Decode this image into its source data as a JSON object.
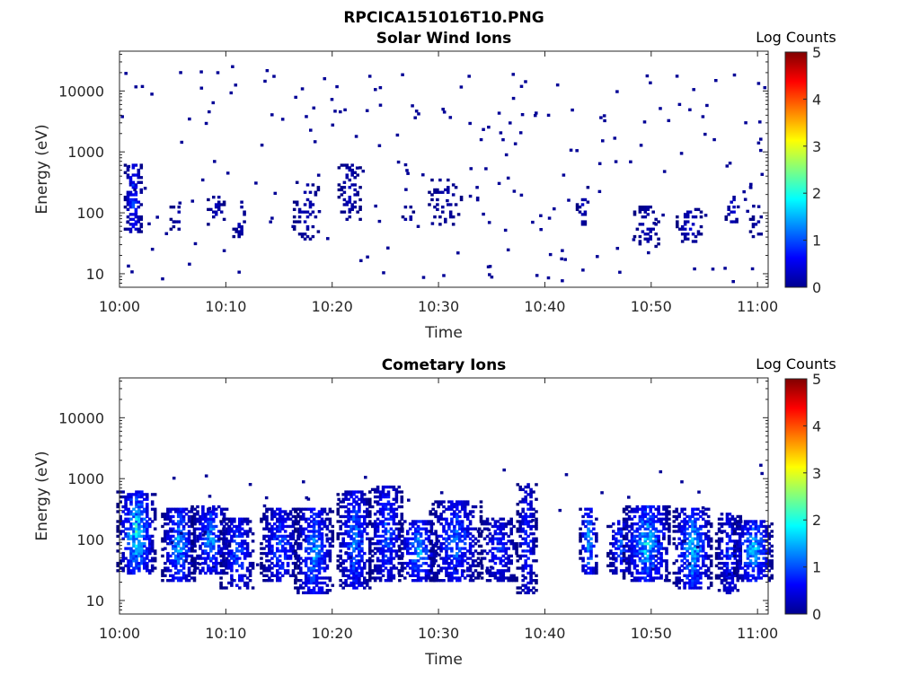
{
  "figure": {
    "filename": "RPCICA151016T10.PNG"
  },
  "chart_data": [
    {
      "type": "heatmap",
      "title": "Solar Wind Ions",
      "xlabel": "Time",
      "ylabel": "Energy (eV)",
      "yscale": "log",
      "ylim": [
        6,
        45000
      ],
      "xlim": [
        "10:00",
        "11:01"
      ],
      "xticks": [
        "10:00",
        "10:10",
        "10:20",
        "10:30",
        "10:40",
        "10:50",
        "11:00"
      ],
      "yticks": [
        "10",
        "100",
        "1000",
        "10000"
      ],
      "colorbar": {
        "label": "Log Counts",
        "min": 0,
        "max": 5,
        "ticks": [
          "0",
          "1",
          "2",
          "3",
          "4",
          "5"
        ]
      },
      "grid": false,
      "bursts": [
        {
          "t": 1.2,
          "elo": 45,
          "ehi": 600,
          "w": 0.8,
          "peak": 1.2,
          "density": 0.6
        },
        {
          "t": 5.3,
          "elo": 50,
          "ehi": 120,
          "w": 0.6,
          "peak": 0.4,
          "density": 0.25
        },
        {
          "t": 9.0,
          "elo": 60,
          "ehi": 180,
          "w": 0.8,
          "peak": 0.4,
          "density": 0.3
        },
        {
          "t": 11.2,
          "elo": 35,
          "ehi": 160,
          "w": 0.6,
          "peak": 0.4,
          "density": 0.35
        },
        {
          "t": 17.5,
          "elo": 35,
          "ehi": 300,
          "w": 1.2,
          "peak": 0.4,
          "density": 0.3
        },
        {
          "t": 21.5,
          "elo": 70,
          "ehi": 600,
          "w": 1.0,
          "peak": 0.4,
          "density": 0.3
        },
        {
          "t": 27.0,
          "elo": 60,
          "ehi": 120,
          "w": 0.5,
          "peak": 0.6,
          "density": 0.3
        },
        {
          "t": 30.5,
          "elo": 60,
          "ehi": 350,
          "w": 1.5,
          "peak": 0.3,
          "density": 0.2
        },
        {
          "t": 43.5,
          "elo": 60,
          "ehi": 250,
          "w": 0.6,
          "peak": 0.4,
          "density": 0.3
        },
        {
          "t": 49.5,
          "elo": 25,
          "ehi": 120,
          "w": 1.2,
          "peak": 0.4,
          "density": 0.35
        },
        {
          "t": 53.5,
          "elo": 30,
          "ehi": 110,
          "w": 1.2,
          "peak": 0.5,
          "density": 0.35
        },
        {
          "t": 57.5,
          "elo": 60,
          "ehi": 180,
          "w": 0.6,
          "peak": 0.6,
          "density": 0.4
        },
        {
          "t": 59.8,
          "elo": 35,
          "ehi": 90,
          "w": 0.6,
          "peak": 0.3,
          "density": 0.3
        }
      ],
      "scatter_count": 220
    },
    {
      "type": "heatmap",
      "title": "Cometary Ions",
      "xlabel": "Time",
      "ylabel": "Energy (eV)",
      "yscale": "log",
      "ylim": [
        6,
        45000
      ],
      "xlim": [
        "10:00",
        "11:01"
      ],
      "xticks": [
        "10:00",
        "10:10",
        "10:20",
        "10:30",
        "10:40",
        "10:50",
        "11:00"
      ],
      "yticks": [
        "10",
        "100",
        "1000",
        "10000"
      ],
      "colorbar": {
        "label": "Log Counts",
        "min": 0,
        "max": 5,
        "ticks": [
          "0",
          "1",
          "2",
          "3",
          "4",
          "5"
        ]
      },
      "grid": false,
      "bursts": [
        {
          "t": 1.5,
          "elo": 25,
          "ehi": 600,
          "w": 1.8,
          "peak": 2.3,
          "density": 0.8
        },
        {
          "t": 5.5,
          "elo": 20,
          "ehi": 300,
          "w": 1.6,
          "peak": 1.9,
          "density": 0.75
        },
        {
          "t": 8.5,
          "elo": 25,
          "ehi": 350,
          "w": 1.8,
          "peak": 1.7,
          "density": 0.7
        },
        {
          "t": 11.0,
          "elo": 15,
          "ehi": 220,
          "w": 1.6,
          "peak": 1.4,
          "density": 0.65
        },
        {
          "t": 15.0,
          "elo": 20,
          "ehi": 300,
          "w": 1.8,
          "peak": 1.4,
          "density": 0.7
        },
        {
          "t": 18.2,
          "elo": 12,
          "ehi": 300,
          "w": 1.8,
          "peak": 1.8,
          "density": 0.75
        },
        {
          "t": 22.0,
          "elo": 15,
          "ehi": 600,
          "w": 1.6,
          "peak": 1.6,
          "density": 0.7
        },
        {
          "t": 25.0,
          "elo": 20,
          "ehi": 700,
          "w": 1.6,
          "peak": 1.4,
          "density": 0.7
        },
        {
          "t": 28.0,
          "elo": 20,
          "ehi": 200,
          "w": 1.8,
          "peak": 1.9,
          "density": 0.7
        },
        {
          "t": 31.5,
          "elo": 20,
          "ehi": 400,
          "w": 2.4,
          "peak": 1.5,
          "density": 0.7
        },
        {
          "t": 35.5,
          "elo": 20,
          "ehi": 220,
          "w": 1.8,
          "peak": 1.1,
          "density": 0.6
        },
        {
          "t": 38.2,
          "elo": 12,
          "ehi": 800,
          "w": 0.9,
          "peak": 1.1,
          "density": 0.6
        },
        {
          "t": 44.0,
          "elo": 25,
          "ehi": 300,
          "w": 0.8,
          "peak": 2.0,
          "density": 0.65
        },
        {
          "t": 47.0,
          "elo": 25,
          "ehi": 200,
          "w": 1.2,
          "peak": 1.4,
          "density": 0.6
        },
        {
          "t": 49.5,
          "elo": 20,
          "ehi": 350,
          "w": 2.2,
          "peak": 2.2,
          "density": 0.8
        },
        {
          "t": 53.8,
          "elo": 15,
          "ehi": 300,
          "w": 1.8,
          "peak": 2.1,
          "density": 0.75
        },
        {
          "t": 57.2,
          "elo": 12,
          "ehi": 250,
          "w": 1.2,
          "peak": 1.2,
          "density": 0.65
        },
        {
          "t": 59.5,
          "elo": 20,
          "ehi": 200,
          "w": 1.8,
          "peak": 2.1,
          "density": 0.75
        }
      ],
      "scatter_count": 70
    }
  ]
}
